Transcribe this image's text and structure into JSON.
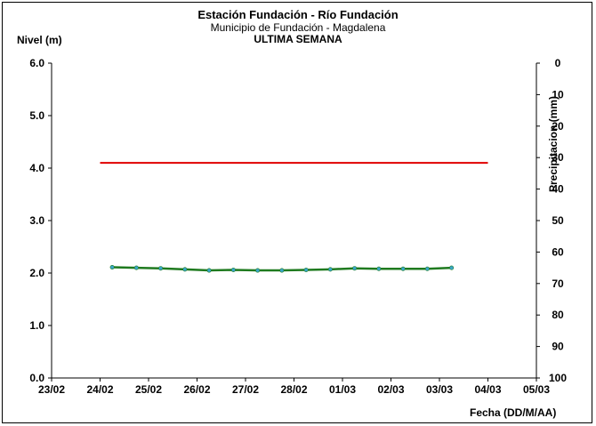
{
  "chart_data": {
    "type": "line",
    "title": "Estación Fundación - Río Fundación",
    "subtitle": "Municipio de Fundación - Magdalena",
    "subtitle2": "ULTIMA SEMANA",
    "ylabel": "Nivel (m)",
    "y2label": "Precipitacion (mm)",
    "xlabel": "Fecha (DD/M/AA)",
    "x_ticks": [
      "23/02",
      "24/02",
      "25/02",
      "26/02",
      "27/02",
      "28/02",
      "01/03",
      "02/03",
      "03/03",
      "04/03",
      "05/03"
    ],
    "y_ticks": [
      "0.0",
      "1.0",
      "2.0",
      "3.0",
      "4.0",
      "5.0",
      "6.0"
    ],
    "y2_ticks": [
      "0",
      "10",
      "20",
      "30",
      "40",
      "50",
      "60",
      "70",
      "80",
      "90",
      "100"
    ],
    "ylim": [
      0,
      6
    ],
    "y2lim": [
      0,
      100
    ],
    "y2_inverted": true,
    "xlim_days": [
      0,
      10
    ],
    "grid": false,
    "colors": {
      "threshold": "#e00000",
      "level": "#1f7a1f",
      "markers": "#3aa6c8"
    },
    "series": [
      {
        "x": [
          "24/02",
          "04/03"
        ],
        "values": [
          4.1,
          4.1
        ]
      },
      {
        "x_days": [
          1.25,
          1.75,
          2.25,
          2.75,
          3.25,
          3.75,
          4.25,
          4.75,
          5.25,
          5.75,
          6.25,
          6.75,
          7.25,
          7.75,
          8.25
        ],
        "values": [
          2.11,
          2.1,
          2.09,
          2.07,
          2.05,
          2.06,
          2.05,
          2.05,
          2.06,
          2.07,
          2.09,
          2.08,
          2.08,
          2.08,
          2.1
        ]
      }
    ]
  }
}
